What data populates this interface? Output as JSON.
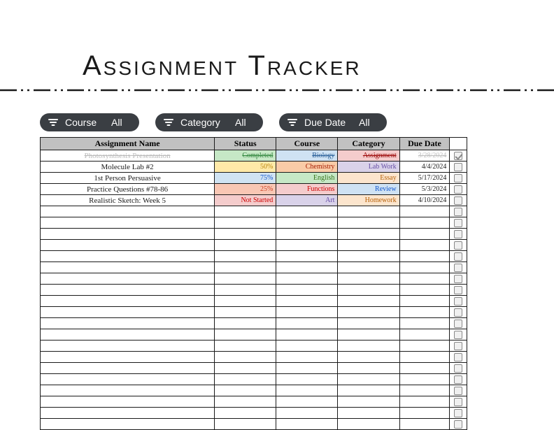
{
  "title": "Assignment Tracker",
  "dashline_color": "#1a1a1a",
  "filters": [
    {
      "id": "course",
      "label": "Course",
      "value": "All"
    },
    {
      "id": "category",
      "label": "Category",
      "value": "All"
    },
    {
      "id": "due",
      "label": "Due Date",
      "value": "All"
    }
  ],
  "table": {
    "headers": {
      "name": "Assignment Name",
      "status": "Status",
      "course": "Course",
      "category": "Category",
      "due": "Due Date"
    },
    "header_bg": "#c1c1c1",
    "rows": [
      {
        "name": "Photosynthesis Presentation",
        "status": "Completed",
        "course": "Biology",
        "category": "Assignment",
        "due": "3/28/2024",
        "checked": true,
        "strike": true,
        "name_color": "#bdbdbd",
        "due_color": "#bdbdbd",
        "status_bg": "#c6e8c6",
        "status_fg": "#2e843b",
        "course_bg": "#cfe2f3",
        "course_fg": "#2a6099",
        "cat_bg": "#f4cccc",
        "cat_fg": "#990000"
      },
      {
        "name": "Molecule Lab #2",
        "status": "50%",
        "course": "Chemistry",
        "category": "Lab Work",
        "due": "4/4/2024",
        "checked": false,
        "strike": false,
        "name_color": "#1a1a1a",
        "due_color": "#1a1a1a",
        "status_bg": "#ffe9a8",
        "status_fg": "#b8860b",
        "course_bg": "#f9cba7",
        "course_fg": "#a61c00",
        "cat_bg": "#d9d2e9",
        "cat_fg": "#674ea7"
      },
      {
        "name": "1st Person Persuasive",
        "status": "75%",
        "course": "English",
        "category": "Essay",
        "due": "5/17/2024",
        "checked": false,
        "strike": false,
        "name_color": "#1a1a1a",
        "due_color": "#1a1a1a",
        "status_bg": "#d0e3f3",
        "status_fg": "#1155cc",
        "course_bg": "#c6e8c6",
        "course_fg": "#38761d",
        "cat_bg": "#fce5cd",
        "cat_fg": "#b45f06"
      },
      {
        "name": "Practice Questions #78-86",
        "status": "25%",
        "course": "Functions",
        "category": "Review",
        "due": "5/3/2024",
        "checked": false,
        "strike": false,
        "name_color": "#1a1a1a",
        "due_color": "#1a1a1a",
        "status_bg": "#f9c7b4",
        "status_fg": "#cc4125",
        "course_bg": "#f4cccc",
        "course_fg": "#cc0000",
        "cat_bg": "#cfe2f3",
        "cat_fg": "#1155cc"
      },
      {
        "name": "Realistic Sketch: Week 5",
        "status": "Not Started",
        "course": "Art",
        "category": "Homework",
        "due": "4/10/2024",
        "checked": false,
        "strike": false,
        "name_color": "#1a1a1a",
        "due_color": "#1a1a1a",
        "status_bg": "#f4cccc",
        "status_fg": "#cc0000",
        "course_bg": "#d9d2e9",
        "course_fg": "#674ea7",
        "cat_bg": "#fce5cd",
        "cat_fg": "#b45f06"
      }
    ],
    "empty_rows": 20
  }
}
